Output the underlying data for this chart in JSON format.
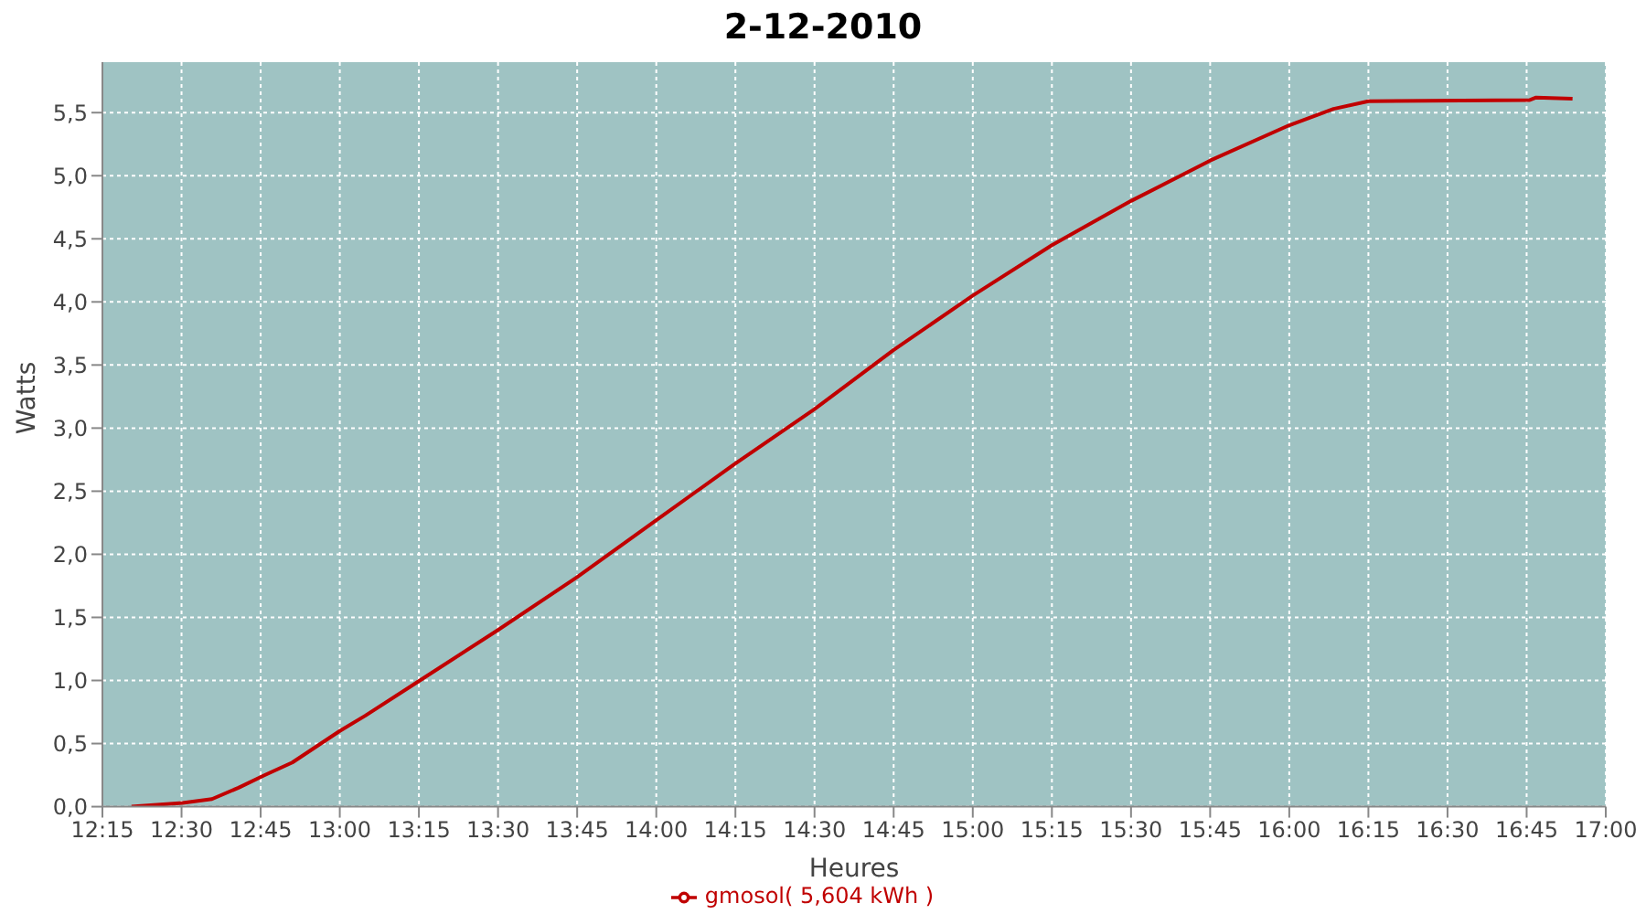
{
  "chart_data": {
    "type": "line",
    "title": "2-12-2010",
    "xlabel": "Heures",
    "ylabel": "Watts",
    "x": [
      12.342,
      12.503,
      12.596,
      12.68,
      12.763,
      12.85,
      13.0,
      13.08,
      13.253,
      13.5,
      13.75,
      14.0,
      14.25,
      14.5,
      14.75,
      15.0,
      15.25,
      15.5,
      15.75,
      16.0,
      16.14,
      16.25,
      16.76,
      16.78,
      16.895
    ],
    "series": [
      {
        "name": "gmosol( 5,604 kWh )",
        "color": "#c00000",
        "values": [
          0,
          0.03,
          0.06,
          0.15,
          0.25,
          0.35,
          0.6,
          0.72,
          1.0,
          1.4,
          1.82,
          2.27,
          2.72,
          3.15,
          3.62,
          4.05,
          4.45,
          4.8,
          5.12,
          5.4,
          5.53,
          5.59,
          5.6,
          5.62,
          5.61
        ]
      }
    ],
    "xlim": [
      12.25,
      17.0
    ],
    "xticks": [
      {
        "value": 12.25,
        "label": "12:15"
      },
      {
        "value": 12.5,
        "label": "12:30"
      },
      {
        "value": 12.75,
        "label": "12:45"
      },
      {
        "value": 13.0,
        "label": "13:00"
      },
      {
        "value": 13.25,
        "label": "13:15"
      },
      {
        "value": 13.5,
        "label": "13:30"
      },
      {
        "value": 13.75,
        "label": "13:45"
      },
      {
        "value": 14.0,
        "label": "14:00"
      },
      {
        "value": 14.25,
        "label": "14:15"
      },
      {
        "value": 14.5,
        "label": "14:30"
      },
      {
        "value": 14.75,
        "label": "14:45"
      },
      {
        "value": 15.0,
        "label": "15:00"
      },
      {
        "value": 15.25,
        "label": "15:15"
      },
      {
        "value": 15.5,
        "label": "15:30"
      },
      {
        "value": 15.75,
        "label": "15:45"
      },
      {
        "value": 16.0,
        "label": "16:00"
      },
      {
        "value": 16.25,
        "label": "16:15"
      },
      {
        "value": 16.5,
        "label": "16:30"
      },
      {
        "value": 16.75,
        "label": "16:45"
      },
      {
        "value": 17.0,
        "label": "17:00"
      }
    ],
    "ylim": [
      0,
      5.9
    ],
    "yticks": [
      {
        "value": 0,
        "label": "0,0"
      },
      {
        "value": 0.5,
        "label": "0,5"
      },
      {
        "value": 1.0,
        "label": "1,0"
      },
      {
        "value": 1.5,
        "label": "1,5"
      },
      {
        "value": 2.0,
        "label": "2,0"
      },
      {
        "value": 2.5,
        "label": "2,5"
      },
      {
        "value": 3.0,
        "label": "3,0"
      },
      {
        "value": 3.5,
        "label": "3,5"
      },
      {
        "value": 4.0,
        "label": "4,0"
      },
      {
        "value": 4.5,
        "label": "4,5"
      },
      {
        "value": 5.0,
        "label": "5,0"
      },
      {
        "value": 5.5,
        "label": "5,5"
      }
    ],
    "grid": true,
    "legend": "bottom",
    "marker": "none",
    "line_style": "solid"
  }
}
